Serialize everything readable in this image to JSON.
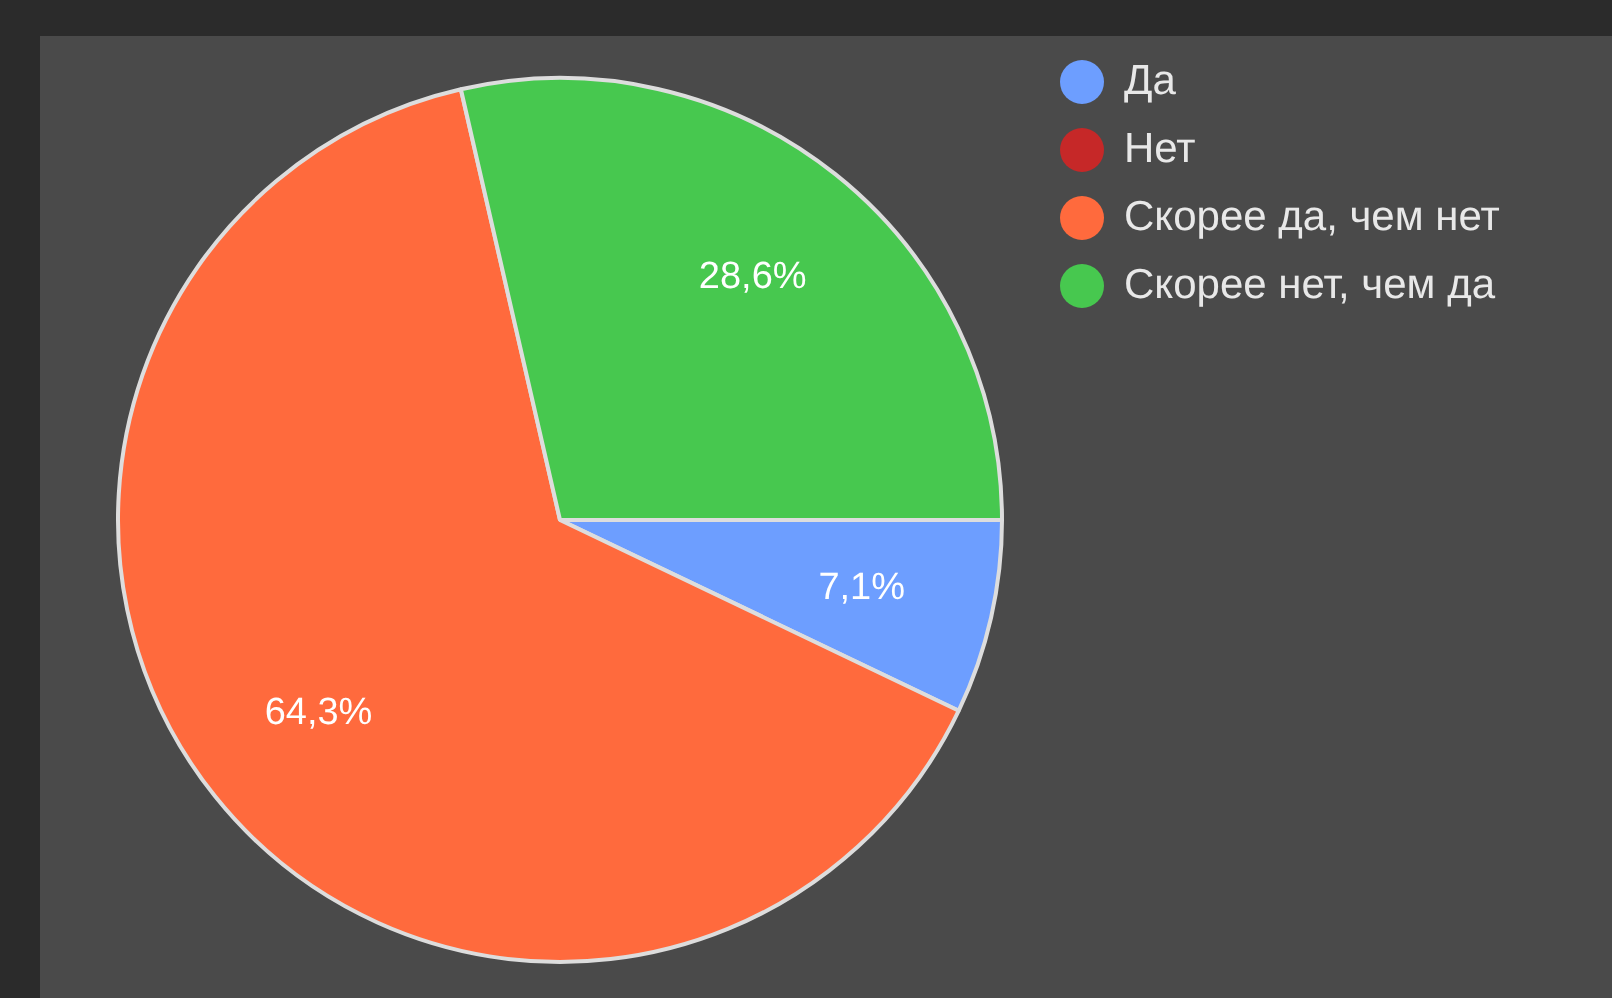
{
  "chart_data": {
    "type": "pie",
    "categories": [
      "Да",
      "Нет",
      "Скорее да, чем нет",
      "Скорее нет, чем да"
    ],
    "values": [
      7.1,
      0,
      64.3,
      28.6
    ],
    "colors": [
      "#6d9eff",
      "#c62828",
      "#ff6a3d",
      "#47c84f"
    ],
    "value_labels": [
      "7,1%",
      null,
      "64,3%",
      "28,6%"
    ],
    "legend": "top right"
  }
}
